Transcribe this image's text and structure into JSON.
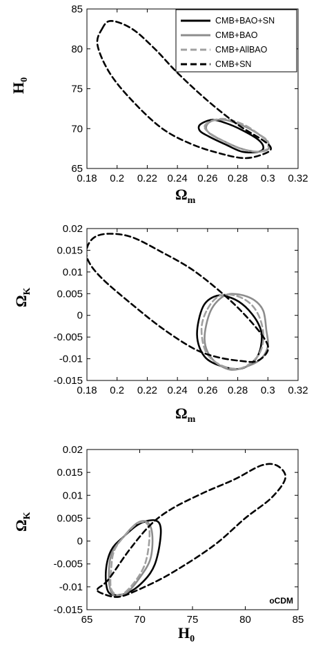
{
  "chart_data": [
    {
      "type": "line",
      "xlabel": "Ω_m",
      "ylabel": "H_0",
      "xlim": [
        0.18,
        0.32
      ],
      "ylim": [
        65,
        85
      ],
      "xticks": [
        "0.18",
        "0.2",
        "0.22",
        "0.24",
        "0.26",
        "0.28",
        "0.3",
        "0.32"
      ],
      "yticks": [
        "65",
        "70",
        "75",
        "80",
        "85"
      ],
      "legend": {
        "position": "top-right"
      },
      "series": [
        {
          "name": "CMB+BAO+SN",
          "color": "#000000",
          "style": "solid",
          "points": [
            [
              0.255,
              70.5
            ],
            [
              0.263,
              71.1
            ],
            [
              0.272,
              70.7
            ],
            [
              0.282,
              69.9
            ],
            [
              0.293,
              68.7
            ],
            [
              0.297,
              67.7
            ],
            [
              0.294,
              67.1
            ],
            [
              0.283,
              67.1
            ],
            [
              0.272,
              68.0
            ],
            [
              0.261,
              69.0
            ],
            [
              0.255,
              69.7
            ],
            [
              0.255,
              70.5
            ]
          ]
        },
        {
          "name": "CMB+BAO",
          "color": "#8c8c8c",
          "style": "solid",
          "points": [
            [
              0.259,
              70.1
            ],
            [
              0.262,
              70.9
            ],
            [
              0.271,
              71.1
            ],
            [
              0.283,
              70.4
            ],
            [
              0.293,
              69.4
            ],
            [
              0.3,
              68.3
            ],
            [
              0.3,
              67.4
            ],
            [
              0.293,
              67.1
            ],
            [
              0.282,
              67.5
            ],
            [
              0.271,
              68.4
            ],
            [
              0.262,
              69.3
            ],
            [
              0.259,
              70.1
            ]
          ]
        },
        {
          "name": "CMB+AllBAO",
          "color": "#a0a0a0",
          "style": "dashed",
          "points": [
            [
              0.258,
              70.3
            ],
            [
              0.263,
              71.0
            ],
            [
              0.272,
              71.2
            ],
            [
              0.284,
              70.5
            ],
            [
              0.294,
              69.3
            ],
            [
              0.3,
              68.4
            ],
            [
              0.299,
              67.4
            ],
            [
              0.291,
              67.1
            ],
            [
              0.28,
              67.6
            ],
            [
              0.27,
              68.5
            ],
            [
              0.261,
              69.5
            ],
            [
              0.258,
              70.3
            ]
          ]
        },
        {
          "name": "CMB+SN",
          "color": "#000000",
          "style": "dashed",
          "points": [
            [
              0.19,
              82.5
            ],
            [
              0.196,
              83.5
            ],
            [
              0.21,
              82.5
            ],
            [
              0.225,
              80.0
            ],
            [
              0.24,
              77.0
            ],
            [
              0.26,
              73.5
            ],
            [
              0.28,
              70.5
            ],
            [
              0.297,
              68.5
            ],
            [
              0.302,
              67.5
            ],
            [
              0.297,
              66.8
            ],
            [
              0.285,
              66.3
            ],
            [
              0.27,
              66.8
            ],
            [
              0.25,
              68.0
            ],
            [
              0.23,
              70.0
            ],
            [
              0.21,
              73.5
            ],
            [
              0.195,
              77.0
            ],
            [
              0.187,
              80.5
            ],
            [
              0.19,
              82.5
            ]
          ]
        }
      ]
    },
    {
      "type": "line",
      "xlabel": "Ω_m",
      "ylabel": "Ω_K",
      "xlim": [
        0.18,
        0.32
      ],
      "ylim": [
        -0.015,
        0.02
      ],
      "xticks": [
        "0.18",
        "0.2",
        "0.22",
        "0.24",
        "0.26",
        "0.28",
        "0.3",
        "0.32"
      ],
      "yticks": [
        "-0.015",
        "-0.01",
        "-0.005",
        "0",
        "0.005",
        "0.01",
        "0.015",
        "0.02"
      ],
      "series": [
        {
          "name": "CMB+BAO+SN",
          "color": "#000000",
          "style": "solid",
          "points": [
            [
              0.257,
              0.002
            ],
            [
              0.266,
              0.0045
            ],
            [
              0.276,
              0.004
            ],
            [
              0.285,
              0.002
            ],
            [
              0.293,
              -0.0015
            ],
            [
              0.296,
              -0.005
            ],
            [
              0.293,
              -0.0095
            ],
            [
              0.283,
              -0.0122
            ],
            [
              0.27,
              -0.0118
            ],
            [
              0.258,
              -0.0095
            ],
            [
              0.253,
              -0.0045
            ],
            [
              0.257,
              0.002
            ]
          ]
        },
        {
          "name": "CMB+BAO",
          "color": "#8c8c8c",
          "style": "solid",
          "points": [
            [
              0.262,
              0.001
            ],
            [
              0.271,
              0.0045
            ],
            [
              0.281,
              0.0048
            ],
            [
              0.291,
              0.0035
            ],
            [
              0.297,
              0.001
            ],
            [
              0.299,
              -0.0035
            ],
            [
              0.3,
              -0.007
            ],
            [
              0.296,
              -0.0098
            ],
            [
              0.288,
              -0.0115
            ],
            [
              0.275,
              -0.0125
            ],
            [
              0.263,
              -0.01
            ],
            [
              0.258,
              -0.0055
            ],
            [
              0.262,
              0.001
            ]
          ]
        },
        {
          "name": "CMB+AllBAO",
          "color": "#a0a0a0",
          "style": "dashed",
          "points": [
            [
              0.26,
              0.0015
            ],
            [
              0.268,
              0.0045
            ],
            [
              0.279,
              0.0045
            ],
            [
              0.289,
              0.0025
            ],
            [
              0.295,
              -0.001
            ],
            [
              0.297,
              -0.0055
            ],
            [
              0.293,
              -0.0095
            ],
            [
              0.282,
              -0.0122
            ],
            [
              0.269,
              -0.0115
            ],
            [
              0.259,
              -0.0085
            ],
            [
              0.256,
              -0.003
            ],
            [
              0.26,
              0.0015
            ]
          ]
        },
        {
          "name": "CMB+SN",
          "color": "#000000",
          "style": "dashed",
          "points": [
            [
              0.18,
              0.0155
            ],
            [
              0.185,
              0.018
            ],
            [
              0.195,
              0.0188
            ],
            [
              0.21,
              0.018
            ],
            [
              0.23,
              0.0145
            ],
            [
              0.25,
              0.0105
            ],
            [
              0.27,
              0.005
            ],
            [
              0.285,
              0.0
            ],
            [
              0.297,
              -0.005
            ],
            [
              0.3,
              -0.008
            ],
            [
              0.293,
              -0.0105
            ],
            [
              0.282,
              -0.0105
            ],
            [
              0.265,
              -0.0095
            ],
            [
              0.25,
              -0.0075
            ],
            [
              0.23,
              -0.003
            ],
            [
              0.21,
              0.0025
            ],
            [
              0.19,
              0.0085
            ],
            [
              0.181,
              0.0125
            ],
            [
              0.18,
              0.0155
            ]
          ]
        }
      ]
    },
    {
      "type": "line",
      "xlabel": "H_0",
      "ylabel": "Ω_K",
      "xlim": [
        65,
        85
      ],
      "ylim": [
        -0.015,
        0.02
      ],
      "xticks": [
        "65",
        "70",
        "75",
        "80",
        "85"
      ],
      "yticks": [
        "-0.015",
        "-0.01",
        "-0.005",
        "0",
        "0.005",
        "0.01",
        "0.015",
        "0.02"
      ],
      "annotation": "oCDM",
      "series": [
        {
          "name": "CMB+BAO+SN",
          "color": "#000000",
          "style": "solid",
          "points": [
            [
              67.3,
              -0.002
            ],
            [
              68.5,
              0.001
            ],
            [
              70.0,
              0.0038
            ],
            [
              71.5,
              0.0045
            ],
            [
              72.0,
              0.0025
            ],
            [
              71.7,
              -0.003
            ],
            [
              71.0,
              -0.007
            ],
            [
              69.5,
              -0.0105
            ],
            [
              68.0,
              -0.0118
            ],
            [
              67.0,
              -0.011
            ],
            [
              66.8,
              -0.0065
            ],
            [
              67.3,
              -0.002
            ]
          ]
        },
        {
          "name": "CMB+BAO",
          "color": "#8c8c8c",
          "style": "solid",
          "points": [
            [
              67.3,
              -0.003
            ],
            [
              68.5,
              0.001
            ],
            [
              69.8,
              0.004
            ],
            [
              70.8,
              0.004
            ],
            [
              71.2,
              0.001
            ],
            [
              71.0,
              -0.004
            ],
            [
              70.0,
              -0.008
            ],
            [
              68.8,
              -0.0112
            ],
            [
              67.6,
              -0.012
            ],
            [
              67.1,
              -0.009
            ],
            [
              67.3,
              -0.003
            ]
          ]
        },
        {
          "name": "CMB+AllBAO",
          "color": "#a0a0a0",
          "style": "dashed",
          "points": [
            [
              67.6,
              -0.002
            ],
            [
              68.7,
              0.0015
            ],
            [
              69.9,
              0.004
            ],
            [
              70.8,
              0.0035
            ],
            [
              70.9,
              0.0
            ],
            [
              70.5,
              -0.005
            ],
            [
              69.5,
              -0.009
            ],
            [
              68.2,
              -0.0118
            ],
            [
              67.3,
              -0.0105
            ],
            [
              67.3,
              -0.006
            ],
            [
              67.6,
              -0.002
            ]
          ]
        },
        {
          "name": "CMB+SN",
          "color": "#000000",
          "style": "dashed",
          "points": [
            [
              66.0,
              -0.0105
            ],
            [
              67.0,
              -0.0085
            ],
            [
              69.0,
              -0.002
            ],
            [
              71.0,
              0.0035
            ],
            [
              73.0,
              0.007
            ],
            [
              76.0,
              0.0105
            ],
            [
              79.0,
              0.0135
            ],
            [
              81.5,
              0.0165
            ],
            [
              83.0,
              0.0165
            ],
            [
              83.8,
              0.0138
            ],
            [
              82.5,
              0.0095
            ],
            [
              80.0,
              0.005
            ],
            [
              77.0,
              -0.001
            ],
            [
              73.0,
              -0.007
            ],
            [
              70.0,
              -0.0105
            ],
            [
              68.0,
              -0.0122
            ],
            [
              66.5,
              -0.0115
            ],
            [
              66.0,
              -0.0105
            ]
          ]
        }
      ]
    }
  ]
}
